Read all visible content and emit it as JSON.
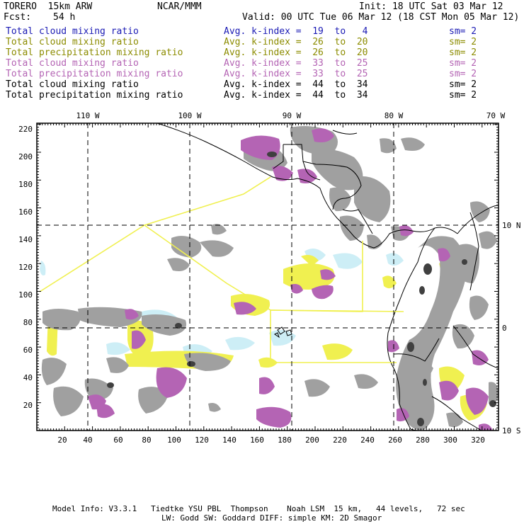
{
  "header": {
    "model": "TORERO  15km ARW",
    "org": "NCAR/MMM",
    "init": "Init: 18 UTC Sat 03 Mar 12",
    "fcst_label": "Fcst:",
    "fcst_value": "54 h",
    "valid": "Valid: 00 UTC Tue 06 Mar 12 (18 CST Mon 05 Mar 12)"
  },
  "legend": [
    {
      "field": "Total cloud mixing ratio",
      "kindex": "Avg. k-index =  19  to   4",
      "sm": "sm= 2",
      "color": "#1a1ab4"
    },
    {
      "field": "Total cloud mixing ratio",
      "kindex": "Avg. k-index =  26  to  20",
      "sm": "sm= 2",
      "color": "#8c8c00"
    },
    {
      "field": "Total precipitation mixing ratio",
      "kindex": "Avg. k-index =  26  to  20",
      "sm": "sm= 2",
      "color": "#8c8c00"
    },
    {
      "field": "Total cloud mixing ratio",
      "kindex": "Avg. k-index =  33  to  25",
      "sm": "sm= 2",
      "color": "#b464b4"
    },
    {
      "field": "Total precipitation mixing ratio",
      "kindex": "Avg. k-index =  33  to  25",
      "sm": "sm= 2",
      "color": "#b464b4"
    },
    {
      "field": "Total cloud mixing ratio",
      "kindex": "Avg. k-index =  44  to  34",
      "sm": "sm= 2",
      "color": "#000000"
    },
    {
      "field": "Total precipitation mixing ratio",
      "kindex": "Avg. k-index =  44  to  34",
      "sm": "sm= 2",
      "color": "#000000"
    }
  ],
  "axes": {
    "lon_labels": [
      "110 W",
      "100 W",
      "90 W",
      "80 W",
      "70 W"
    ],
    "lat_labels_right": [
      "10 N",
      "0",
      "10 S"
    ],
    "x_ticks": [
      "20",
      "40",
      "60",
      "80",
      "100",
      "120",
      "140",
      "160",
      "180",
      "200",
      "220",
      "240",
      "260",
      "280",
      "300",
      "320"
    ],
    "y_ticks": [
      "20",
      "40",
      "60",
      "80",
      "100",
      "120",
      "140",
      "160",
      "180",
      "200",
      "220"
    ]
  },
  "footer": {
    "line1": "Model Info: V3.3.1   Tiedtke YSU PBL  Thompson    Noah LSM  15 km,   44 levels,   72 sec",
    "line2": "LW: Godd SW: Goddard DIFF: simple KM: 2D Smagor"
  },
  "colors": {
    "gray_cloud": "#a0a0a0",
    "dark_cloud": "#404040",
    "purple_fill": "#b464b4",
    "yellow_fill": "#f0f050",
    "cyan_fill": "#cdeef6",
    "yellow_line": "#f0f050"
  }
}
